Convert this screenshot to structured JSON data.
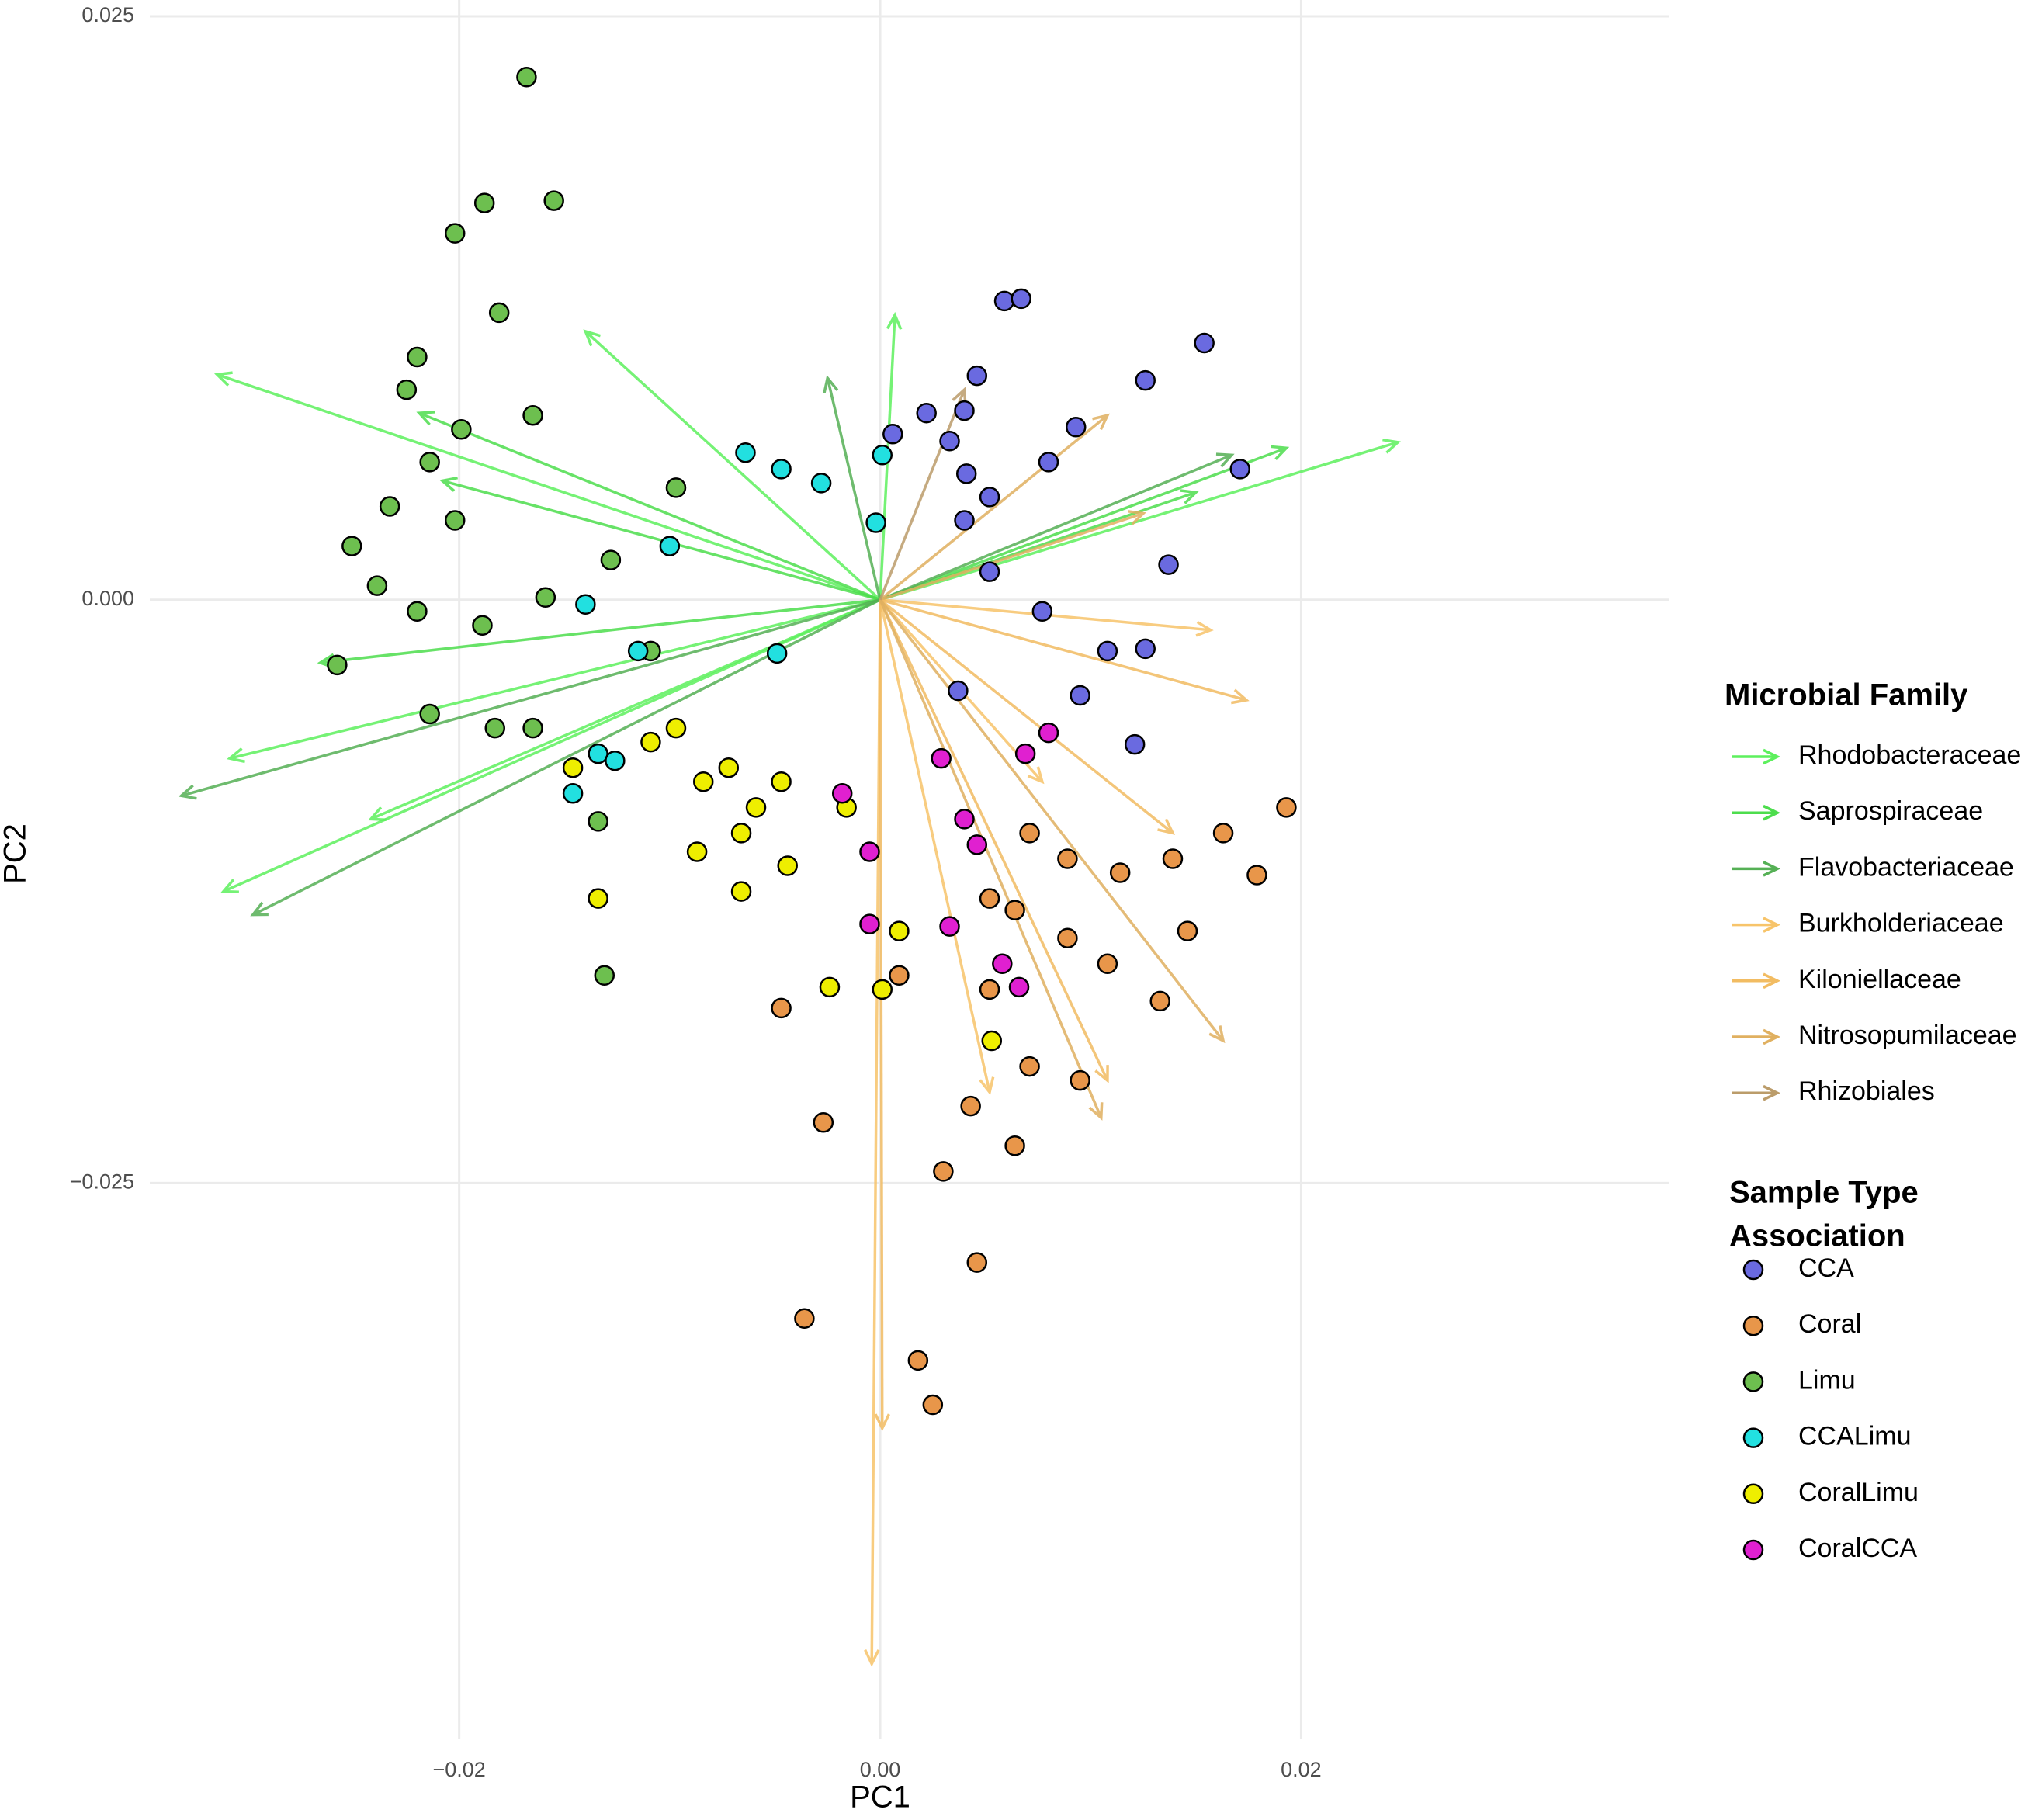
{
  "chart_data": {
    "type": "scatter",
    "x_label": "PC1",
    "y_label": "PC2",
    "xlim": [
      -0.0347,
      0.0375
    ],
    "ylim": [
      -0.0488,
      0.0257
    ],
    "xticks": [
      {
        "value": -0.02,
        "label": "−0.02"
      },
      {
        "value": 0,
        "label": "0.00"
      },
      {
        "value": 0.02,
        "label": "0.02"
      }
    ],
    "yticks": [
      0.025,
      {
        "value": 0,
        "label": "0.000"
      },
      {
        "value": -0.025,
        "label": "−0.025"
      }
    ],
    "grid": true,
    "arrow_legend_title": "Microbial Family",
    "arrows": [
      {
        "name": "Rhodobacteraceae",
        "color": "#5df05d",
        "x": [
          -0.0315,
          0.0246,
          -0.0309,
          -0.0312,
          -0.014,
          0.0007,
          -0.0242
        ],
        "y": [
          0.00965,
          0.00675,
          -0.0068,
          -0.0125,
          0.0115,
          0.0122,
          -0.0094
        ]
      },
      {
        "name": "Saprospiraceae",
        "color": "#4ddd4d",
        "x": [
          0.0193,
          -0.0266,
          -0.0219,
          0.015,
          -0.0208
        ],
        "y": [
          0.0065,
          -0.0027,
          0.008,
          0.0046,
          0.0051
        ]
      },
      {
        "name": "Flavobacteriaceae",
        "color": "#55b055",
        "x": [
          -0.0298,
          -0.0332,
          -0.0025,
          0.0167
        ],
        "y": [
          -0.0135,
          -0.0084,
          0.0095,
          0.0062
        ]
      },
      {
        "name": "Burkholderiaceae",
        "color": "#f7c46a",
        "x": [
          -0.0004,
          0.0052,
          0.0157,
          0.0077
        ],
        "y": [
          -0.0456,
          -0.0211,
          -0.0013,
          -0.0078
        ]
      },
      {
        "name": "Kiloniellaceae",
        "color": "#f2bc62",
        "x": [
          0.0001,
          0.0108,
          0.0174,
          0.0139
        ],
        "y": [
          -0.0355,
          -0.0206,
          -0.0043,
          -0.01
        ]
      },
      {
        "name": "Nitrosopumilaceae",
        "color": "#e0b060",
        "x": [
          0.0163,
          0.0105,
          0.0125,
          0.0108
        ],
        "y": [
          -0.0189,
          -0.0222,
          0.0037,
          0.0079
        ]
      },
      {
        "name": "Rhizobiales",
        "color": "#bb9c6a",
        "x": [
          0.004
        ],
        "y": [
          0.009
        ]
      }
    ],
    "point_legend_title": [
      "Sample Type",
      "Association"
    ],
    "series": [
      {
        "name": "CCA",
        "color": "#6a6ae0",
        "x": [
          0.0059,
          0.0067,
          0.0046,
          0.004,
          0.0033,
          0.0041,
          0.0052,
          0.008,
          0.0093,
          0.0126,
          0.0154,
          0.0171,
          0.0137,
          0.0126,
          0.0108,
          0.0095,
          0.0121,
          0.0077,
          0.0052,
          0.0037,
          0.004,
          0.0022,
          0.0006
        ],
        "y": [
          0.0128,
          0.0129,
          0.0096,
          0.0081,
          0.0068,
          0.0054,
          0.0044,
          0.0059,
          0.0074,
          0.0094,
          0.011,
          0.0056,
          0.0015,
          -0.0021,
          -0.0022,
          -0.0041,
          -0.0062,
          -0.0005,
          0.0012,
          -0.0039,
          0.0034,
          0.008,
          0.0071
        ]
      },
      {
        "name": "Coral",
        "color": "#e8964a",
        "x": [
          0.0193,
          0.0163,
          0.0139,
          0.0114,
          0.0089,
          0.0071,
          0.0064,
          0.0052,
          0.0089,
          0.0108,
          0.0133,
          0.0095,
          0.0071,
          0.0064,
          0.0043,
          0.003,
          0.0046,
          0.0018,
          0.0025,
          -0.0036,
          -0.0027,
          -0.0047,
          0.0009,
          0.0052,
          0.0179,
          0.0146
        ],
        "y": [
          -0.0089,
          -0.01,
          -0.0111,
          -0.0117,
          -0.0111,
          -0.01,
          -0.0133,
          -0.0128,
          -0.0145,
          -0.0156,
          -0.0172,
          -0.0206,
          -0.02,
          -0.0234,
          -0.0217,
          -0.0245,
          -0.0284,
          -0.0326,
          -0.0345,
          -0.0308,
          -0.0224,
          -0.0175,
          -0.0161,
          -0.0167,
          -0.0118,
          -0.0142
        ]
      },
      {
        "name": "Limu",
        "color": "#6dbf4f",
        "x": [
          -0.0168,
          -0.0188,
          -0.0155,
          -0.0202,
          -0.0181,
          -0.022,
          -0.0225,
          -0.0199,
          -0.0214,
          -0.0165,
          -0.0233,
          -0.0251,
          -0.0239,
          -0.022,
          -0.0258,
          -0.0189,
          -0.0159,
          -0.0128,
          -0.0109,
          -0.0097,
          -0.0214,
          -0.0183,
          -0.0131,
          -0.0134,
          -0.0165,
          -0.0202
        ],
        "y": [
          0.0224,
          0.017,
          0.0171,
          0.0157,
          0.0123,
          0.0104,
          0.009,
          0.0073,
          0.0059,
          0.0079,
          0.004,
          0.0023,
          0.0006,
          -0.0005,
          -0.0028,
          -0.0011,
          0.0001,
          0.0017,
          -0.0022,
          0.0048,
          -0.0049,
          -0.0055,
          -0.0161,
          -0.0095,
          -0.0055,
          0.0034
        ]
      },
      {
        "name": "CCALimu",
        "color": "#22e0e0",
        "x": [
          -0.0064,
          -0.0028,
          -0.0002,
          0.0001,
          -0.0047,
          -0.01,
          -0.014,
          -0.0134,
          -0.0146,
          -0.0126,
          -0.0115,
          -0.0049
        ],
        "y": [
          0.0063,
          0.005,
          0.0033,
          0.0062,
          0.0056,
          0.0023,
          -0.0002,
          -0.0066,
          -0.0083,
          -0.0069,
          -0.0022,
          -0.0023
        ]
      },
      {
        "name": "CoralLimu",
        "color": "#eeee00",
        "x": [
          -0.0109,
          -0.0097,
          -0.0084,
          -0.0072,
          -0.0059,
          -0.0047,
          -0.0066,
          -0.0087,
          -0.0134,
          -0.0044,
          -0.0066,
          -0.0016,
          0.0001,
          -0.0024,
          0.0053,
          0.0009,
          -0.0146
        ],
        "y": [
          -0.0061,
          -0.0055,
          -0.0078,
          -0.0072,
          -0.0089,
          -0.0078,
          -0.01,
          -0.0108,
          -0.0128,
          -0.0114,
          -0.0125,
          -0.0089,
          -0.0167,
          -0.0166,
          -0.0189,
          -0.0142,
          -0.0072
        ]
      },
      {
        "name": "CoralCCA",
        "color": "#e020d0",
        "x": [
          0.0029,
          0.004,
          0.0046,
          -0.0005,
          -0.0005,
          0.0033,
          0.0058,
          0.0066,
          0.0069,
          0.008,
          -0.0018
        ],
        "y": [
          -0.0068,
          -0.0094,
          -0.0105,
          -0.0108,
          -0.0139,
          -0.014,
          -0.0156,
          -0.0166,
          -0.0066,
          -0.0057,
          -0.0083
        ]
      }
    ]
  }
}
